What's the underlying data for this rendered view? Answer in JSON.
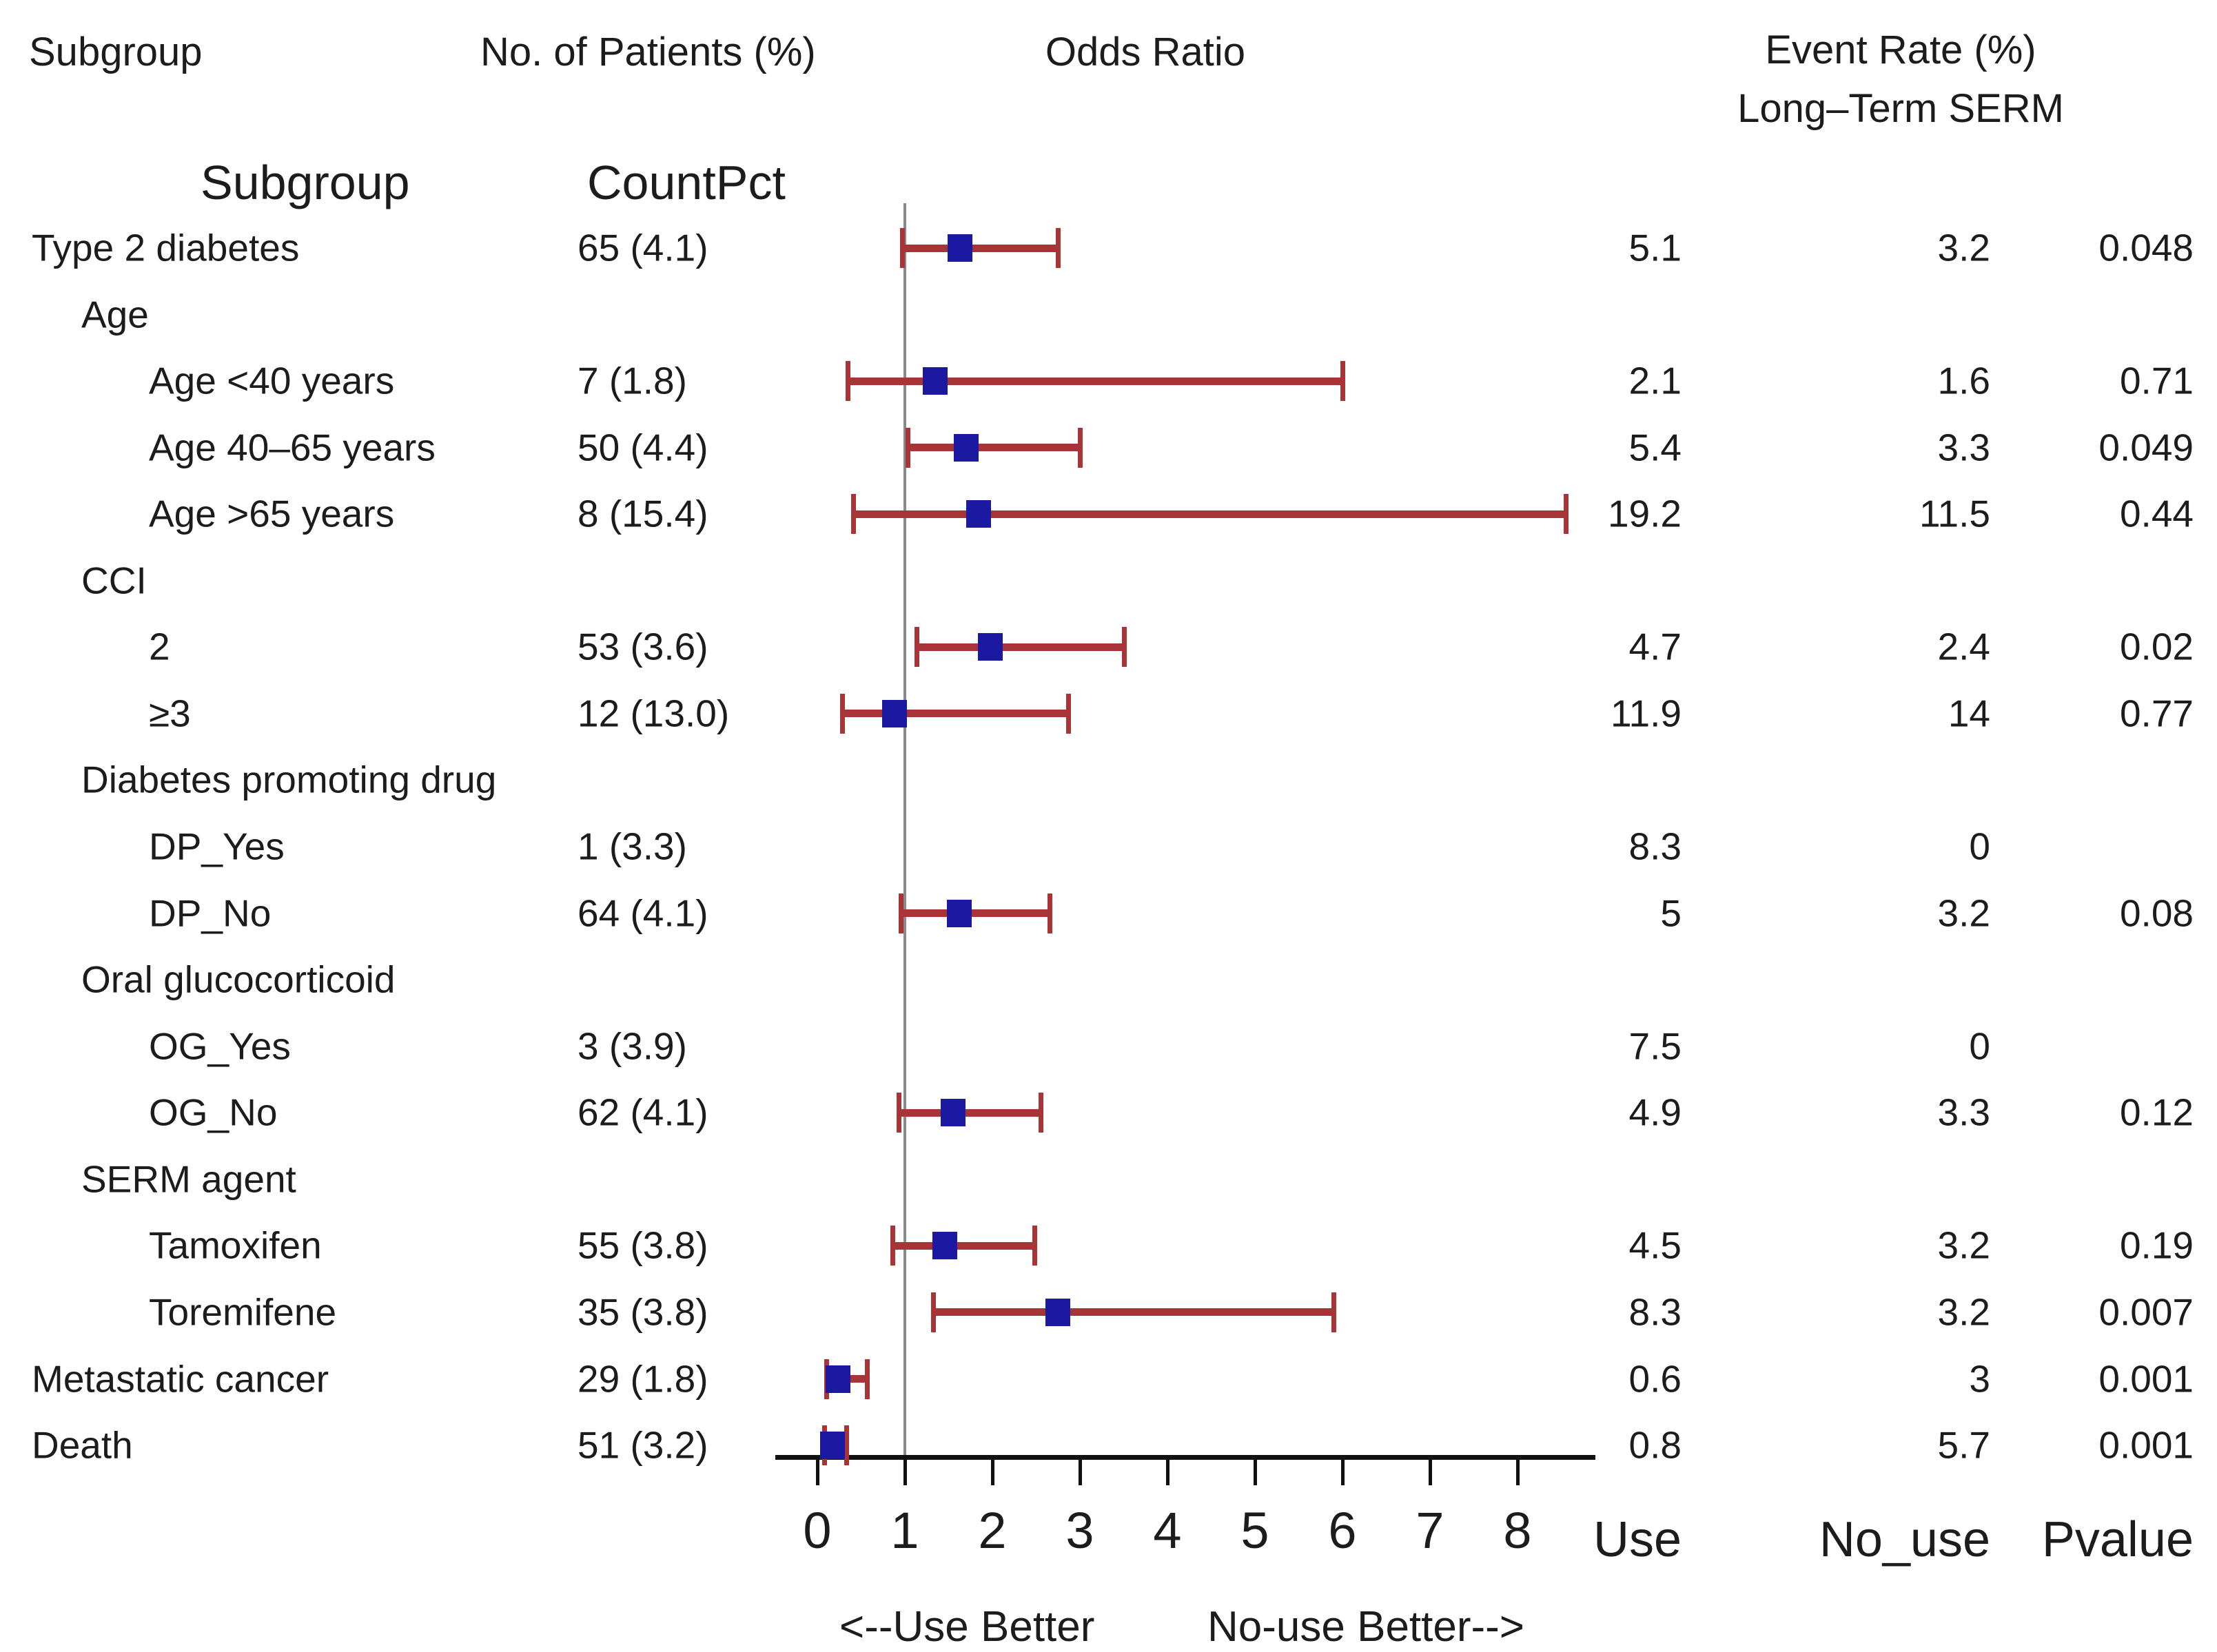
{
  "header": {
    "subgroup": "Subgroup",
    "patients": "No. of Patients (%)",
    "odds_ratio": "Odds Ratio",
    "event_rate_line1": "Event Rate (%)",
    "event_rate_line2": "Long–Term SERM",
    "subgroup2": "Subgroup",
    "countpct": "CountPct"
  },
  "footer": {
    "use": "Use",
    "no_use": "No_use",
    "pvalue": "Pvalue",
    "note_left": "<--Use Better",
    "note_right": "No-use Better-->"
  },
  "colors": {
    "marker": "#1b18a2",
    "ci": "#a93438",
    "ref_line": "#8a8a8a",
    "axis": "#111111"
  },
  "chart_data": {
    "type": "forest",
    "title": "Subgroup forest plot of odds ratios, long-term SERM use vs no use",
    "xlabel": "Odds Ratio",
    "xlim": [
      0,
      8.6
    ],
    "x_ticks": [
      0,
      1,
      2,
      3,
      4,
      5,
      6,
      7,
      8
    ],
    "ref_line_x": 1,
    "grid": false,
    "legend_position": "none",
    "columns": {
      "subgroup": "Subgroup",
      "countpct": "CountPct",
      "use": "Use",
      "no_use": "No_use",
      "pvalue": "Pvalue"
    },
    "rows": [
      {
        "label": "Type 2 diabetes",
        "indent": 0,
        "count": "65 (4.1)",
        "or": 1.63,
        "ci": [
          0.97,
          2.75
        ],
        "use": "5.1",
        "no_use": "3.2",
        "pvalue": "0.048"
      },
      {
        "label": "Age",
        "indent": 1,
        "section": true
      },
      {
        "label": "Age <40 years",
        "indent": 2,
        "count": "7 (1.8)",
        "or": 1.35,
        "ci": [
          0.35,
          6.0
        ],
        "use": "2.1",
        "no_use": "1.6",
        "pvalue": "0.71"
      },
      {
        "label": "Age 40–65 years",
        "indent": 2,
        "count": "50 (4.4)",
        "or": 1.7,
        "ci": [
          1.03,
          3.0
        ],
        "use": "5.4",
        "no_use": "3.3",
        "pvalue": "0.049"
      },
      {
        "label": "Age >65 years",
        "indent": 2,
        "count": "8 (15.4)",
        "or": 1.84,
        "ci": [
          0.41,
          8.55
        ],
        "use": "19.2",
        "no_use": "11.5",
        "pvalue": "0.44"
      },
      {
        "label": "CCI",
        "indent": 1,
        "section": true
      },
      {
        "label": "2",
        "indent": 2,
        "count": "53 (3.6)",
        "or": 1.98,
        "ci": [
          1.13,
          3.5
        ],
        "use": "4.7",
        "no_use": "2.4",
        "pvalue": "0.02"
      },
      {
        "label": "≥3",
        "indent": 2,
        "count": "12 (13.0)",
        "or": 0.88,
        "ci": [
          0.28,
          2.87
        ],
        "use": "11.9",
        "no_use": "14",
        "pvalue": "0.77"
      },
      {
        "label": "Diabetes promoting drug",
        "indent": 1,
        "section": true
      },
      {
        "label": "DP_Yes",
        "indent": 2,
        "count": "1 (3.3)",
        "or": null,
        "ci": null,
        "use": "8.3",
        "no_use": "0",
        "pvalue": ""
      },
      {
        "label": "DP_No",
        "indent": 2,
        "count": "64 (4.1)",
        "or": 1.62,
        "ci": [
          0.95,
          2.65
        ],
        "use": "5",
        "no_use": "3.2",
        "pvalue": "0.08"
      },
      {
        "label": "Oral glucocorticoid",
        "indent": 1,
        "section": true
      },
      {
        "label": "OG_Yes",
        "indent": 2,
        "count": "3 (3.9)",
        "or": null,
        "ci": null,
        "use": "7.5",
        "no_use": "0",
        "pvalue": ""
      },
      {
        "label": "OG_No",
        "indent": 2,
        "count": "62 (4.1)",
        "or": 1.55,
        "ci": [
          0.93,
          2.55
        ],
        "use": "4.9",
        "no_use": "3.3",
        "pvalue": "0.12"
      },
      {
        "label": "SERM agent",
        "indent": 1,
        "section": true
      },
      {
        "label": "Tamoxifen",
        "indent": 2,
        "count": "55 (3.8)",
        "or": 1.46,
        "ci": [
          0.86,
          2.48
        ],
        "use": "4.5",
        "no_use": "3.2",
        "pvalue": "0.19"
      },
      {
        "label": "Toremifene",
        "indent": 2,
        "count": "35 (3.8)",
        "or": 2.75,
        "ci": [
          1.32,
          5.9
        ],
        "use": "8.3",
        "no_use": "3.2",
        "pvalue": "0.007"
      },
      {
        "label": "Metastatic cancer",
        "indent": 0,
        "count": "29 (1.8)",
        "or": 0.24,
        "ci": [
          0.1,
          0.57
        ],
        "use": "0.6",
        "no_use": "3",
        "pvalue": "0.001"
      },
      {
        "label": "Death",
        "indent": 0,
        "count": "51 (3.2)",
        "or": 0.17,
        "ci": [
          0.08,
          0.33
        ],
        "use": "0.8",
        "no_use": "5.7",
        "pvalue": "0.001"
      }
    ],
    "axis_direction_notes": [
      "<--Use Better",
      "No-use Better-->"
    ]
  }
}
